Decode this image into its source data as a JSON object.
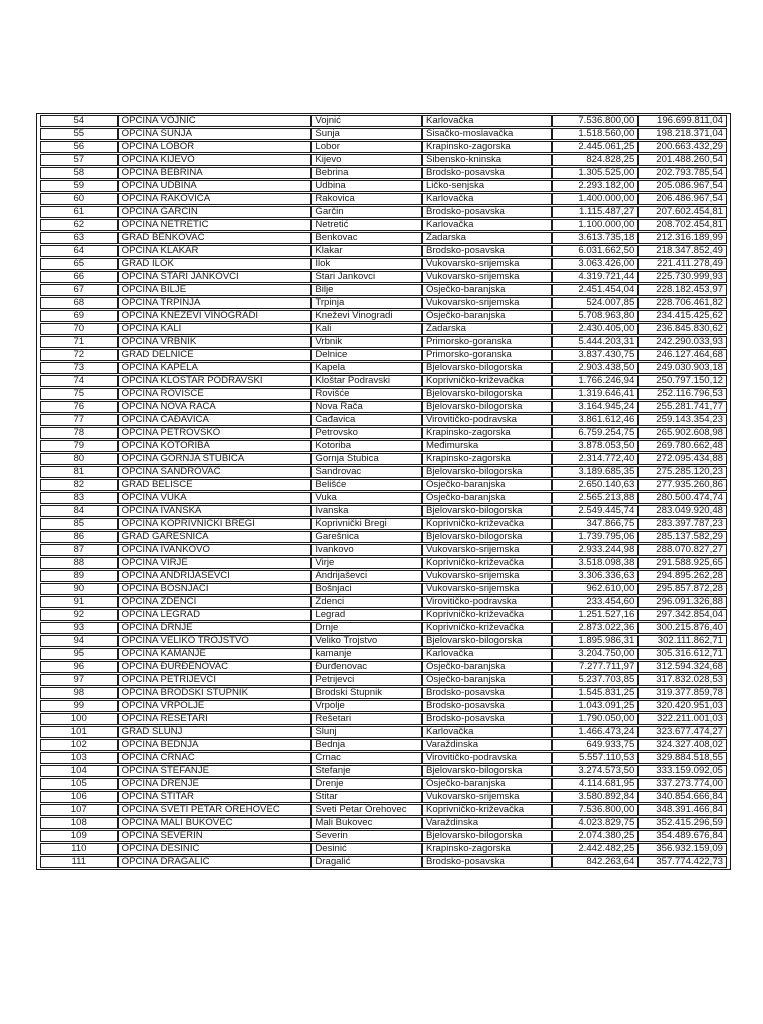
{
  "colors": {
    "background": "#ffffff",
    "border": "#1a1a1a",
    "text": "#1b1b1b"
  },
  "table": {
    "rows": [
      [
        "54",
        "OPĆINA VOJNIĆ",
        "Vojnić",
        "Karlovačka",
        "7.536.800,00",
        "196.699.811,04"
      ],
      [
        "55",
        "OPĆINA SUNJA",
        "Sunja",
        "Sisačko-moslavačka",
        "1.518.560,00",
        "198.218.371,04"
      ],
      [
        "56",
        "OPĆINA LOBOR",
        "Lobor",
        "Krapinsko-zagorska",
        "2.445.061,25",
        "200.663.432,29"
      ],
      [
        "57",
        "OPĆINA KIJEVO",
        "Kijevo",
        "Šibensko-kninska",
        "824.828,25",
        "201.488.260,54"
      ],
      [
        "58",
        "OPĆINA BEBRINA",
        "Bebrina",
        "Brodsko-posavska",
        "1.305.525,00",
        "202.793.785,54"
      ],
      [
        "59",
        "OPĆINA UDBINA",
        "Udbina",
        "Ličko-senjska",
        "2.293.182,00",
        "205.086.967,54"
      ],
      [
        "60",
        "OPĆINA RAKOVICA",
        "Rakovica",
        "Karlovačka",
        "1.400.000,00",
        "206.486.967,54"
      ],
      [
        "61",
        "OPĆINA GARČIN",
        "Garčin",
        "Brodsko-posavska",
        "1.115.487,27",
        "207.602.454,81"
      ],
      [
        "62",
        "OPĆINA NETRETIĆ",
        "Netretić",
        "Karlovačka",
        "1.100.000,00",
        "208.702.454,81"
      ],
      [
        "63",
        "GRAD BENKOVAC",
        "Benkovac",
        "Zadarska",
        "3.613.735,18",
        "212.316.189,99"
      ],
      [
        "64",
        "OPĆINA KLAKAR",
        "Klakar",
        "Brodsko-posavska",
        "6.031.662,50",
        "218.347.852,49"
      ],
      [
        "65",
        "GRAD ILOK",
        "Ilok",
        "Vukovarsko-srijemska",
        "3.063.426,00",
        "221.411.278,49"
      ],
      [
        "66",
        "OPĆINA STARI JANKOVCI",
        "Stari Jankovci",
        "Vukovarsko-srijemska",
        "4.319.721,44",
        "225.730.999,93"
      ],
      [
        "67",
        "OPĆINA BILJE",
        "Bilje",
        "Osječko-baranjska",
        "2.451.454,04",
        "228.182.453,97"
      ],
      [
        "68",
        "OPĆINA TRPINJA",
        "Trpinja",
        "Vukovarsko-srijemska",
        "524.007,85",
        "228.706.461,82"
      ],
      [
        "69",
        "OPĆINA KNEŽEVI VINOGRADI",
        "Kneževi Vinogradi",
        "Osječko-baranjska",
        "5.708.963,80",
        "234.415.425,62"
      ],
      [
        "70",
        "OPĆINA KALI",
        "Kali",
        "Zadarska",
        "2.430.405,00",
        "236.845.830,62"
      ],
      [
        "71",
        "OPĆINA VRBNIK",
        "Vrbnik",
        "Primorsko-goranska",
        "5.444.203,31",
        "242.290.033,93"
      ],
      [
        "72",
        "GRAD DELNICE",
        "Delnice",
        "Primorsko-goranska",
        "3.837.430,75",
        "246.127.464,68"
      ],
      [
        "73",
        "OPĆINA KAPELA",
        "Kapela",
        "Bjelovarsko-bilogorska",
        "2.903.438,50",
        "249.030.903,18"
      ],
      [
        "74",
        "OPĆINA KLOŠTAR PODRAVSKI",
        "Kloštar Podravski",
        "Koprivničko-križevačka",
        "1.766.246,94",
        "250.797.150,12"
      ],
      [
        "75",
        "OPĆINA ROVIŠĆE",
        "Rovišće",
        "Bjelovarsko-bilogorska",
        "1.319.646,41",
        "252.116.796,53"
      ],
      [
        "76",
        "OPĆINA NOVA RAČA",
        "Nova Rača",
        "Bjelovarsko-bilogorska",
        "3.164.945,24",
        "255.281.741,77"
      ],
      [
        "77",
        "OPĆINA ČAĐAVICA",
        "Čađavica",
        "Virovitičko-podravska",
        "3.861.612,46",
        "259.143.354,23"
      ],
      [
        "78",
        "OPĆINA PETROVSKO",
        "Petrovsko",
        "Krapinsko-zagorska",
        "6.759.254,75",
        "265.902.608,98"
      ],
      [
        "79",
        "OPĆINA KOTORIBA",
        "Kotoriba",
        "Međimurska",
        "3.878.053,50",
        "269.780.662,48"
      ],
      [
        "80",
        "OPĆINA GORNJA STUBICA",
        "Gornja Stubica",
        "Krapinsko-zagorska",
        "2.314.772,40",
        "272.095.434,88"
      ],
      [
        "81",
        "OPĆINA ŠANDROVAC",
        "Šandrovac",
        "Bjelovarsko-bilogorska",
        "3.189.685,35",
        "275.285.120,23"
      ],
      [
        "82",
        "GRAD BELIŠĆE",
        "Belišće",
        "Osječko-baranjska",
        "2.650.140,63",
        "277.935.260,86"
      ],
      [
        "83",
        "OPĆINA VUKA",
        "Vuka",
        "Osječko-baranjska",
        "2.565.213,88",
        "280.500.474,74"
      ],
      [
        "84",
        "OPĆINA IVANSKA",
        "Ivanska",
        "Bjelovarsko-bilogorska",
        "2.549.445,74",
        "283.049.920,48"
      ],
      [
        "85",
        "OPĆINA KOPRIVNIČKI BREGI",
        "Koprivnički Bregi",
        "Koprivničko-križevačka",
        "347.866,75",
        "283.397.787,23"
      ],
      [
        "86",
        "GRAD GAREŠNICA",
        "Garešnica",
        "Bjelovarsko-bilogorska",
        "1.739.795,06",
        "285.137.582,29"
      ],
      [
        "87",
        "OPĆINA IVANKOVO",
        "Ivankovo",
        "Vukovarsko-srijemska",
        "2.933.244,98",
        "288.070.827,27"
      ],
      [
        "88",
        "OPĆINA VIRJE",
        "Virje",
        "Koprivničko-križevačka",
        "3.518.098,38",
        "291.588.925,65"
      ],
      [
        "89",
        "OPĆINA ANDRIJAŠEVCI",
        "Andrijaševci",
        "Vukovarsko-srijemska",
        "3.306.336,63",
        "294.895.262,28"
      ],
      [
        "90",
        "OPĆINA BOŠNJACI",
        "Bošnjaci",
        "Vukovarsko-srijemska",
        "962.610,00",
        "295.857.872,28"
      ],
      [
        "91",
        "OPĆINA ZDENCI",
        "Zdenci",
        "Virovitičko-podravska",
        "233.454,60",
        "296.091.326,88"
      ],
      [
        "92",
        "OPĆINA LEGRAD",
        "Legrad",
        "Koprivničko-križevačka",
        "1.251.527,16",
        "297.342.854,04"
      ],
      [
        "93",
        "OPĆINA DRNJE",
        "Drnje",
        "Koprivničko-križevačka",
        "2.873.022,36",
        "300.215.876,40"
      ],
      [
        "94",
        "OPĆINA VELIKO TROJSTVO",
        "Veliko Trojstvo",
        "Bjelovarsko-bilogorska",
        "1.895.986,31",
        "302.111.862,71"
      ],
      [
        "95",
        "OPĆINA KAMANJE",
        "kamanje",
        "Karlovačka",
        "3.204.750,00",
        "305.316.612,71"
      ],
      [
        "96",
        "OPĆINA ĐURĐENOVAC",
        "Đurđenovac",
        "Osječko-baranjska",
        "7.277.711,97",
        "312.594.324,68"
      ],
      [
        "97",
        "OPĆINA PETRIJEVCI",
        "Petrijevci",
        "Osječko-baranjska",
        "5.237.703,85",
        "317.832.028,53"
      ],
      [
        "98",
        "OPĆINA BRODSKI STUPNIK",
        "Brodski Stupnik",
        "Brodsko-posavska",
        "1.545.831,25",
        "319.377.859,78"
      ],
      [
        "99",
        "OPĆINA VRPOLJE",
        "Vrpolje",
        "Brodsko-posavska",
        "1.043.091,25",
        "320.420.951,03"
      ],
      [
        "100",
        "OPĆINA REŠETARI",
        "Rešetari",
        "Brodsko-posavska",
        "1.790.050,00",
        "322.211.001,03"
      ],
      [
        "101",
        "GRAD SLUNJ",
        "Slunj",
        "Karlovačka",
        "1.466.473,24",
        "323.677.474,27"
      ],
      [
        "102",
        "OPĆINA BEDNJA",
        "Bednja",
        "Varaždinska",
        "649.933,75",
        "324.327.408,02"
      ],
      [
        "103",
        "OPĆINA CRNAC",
        "Crnac",
        "Virovitičko-podravska",
        "5.557.110,53",
        "329.884.518,55"
      ],
      [
        "104",
        "OPĆINA ŠTEFANJE",
        "Štefanje",
        "Bjelovarsko-bilogorska",
        "3.274.573,50",
        "333.159.092,05"
      ],
      [
        "105",
        "OPĆINA DRENJE",
        "Drenje",
        "Osječko-baranjska",
        "4.114.681,95",
        "337.273.774,00"
      ],
      [
        "106",
        "OPĆINA ŠTITAR",
        "Štitar",
        "Vukovarsko-srijemska",
        "3.580.892,84",
        "340.854.666,84"
      ],
      [
        "107",
        "OPĆINA SVETI PETAR OREHOVEC",
        "Sveti Petar Orehovec",
        "Koprivničko-križevačka",
        "7.536.800,00",
        "348.391.466,84"
      ],
      [
        "108",
        "OPĆINA MALI BUKOVEC",
        "Mali Bukovec",
        "Varaždinska",
        "4.023.829,75",
        "352.415.296,59"
      ],
      [
        "109",
        "OPĆINA SEVERIN",
        "Severin",
        "Bjelovarsko-bilogorska",
        "2.074.380,25",
        "354.489.676,84"
      ],
      [
        "110",
        "OPĆINA DESINIĆ",
        "Desinić",
        "Krapinsko-zagorska",
        "2.442.482,25",
        "356.932.159,09"
      ],
      [
        "111",
        "OPĆINA DRAGALIĆ",
        "Dragalić",
        "Brodsko-posavska",
        "842.263,64",
        "357.774.422,73"
      ]
    ]
  }
}
